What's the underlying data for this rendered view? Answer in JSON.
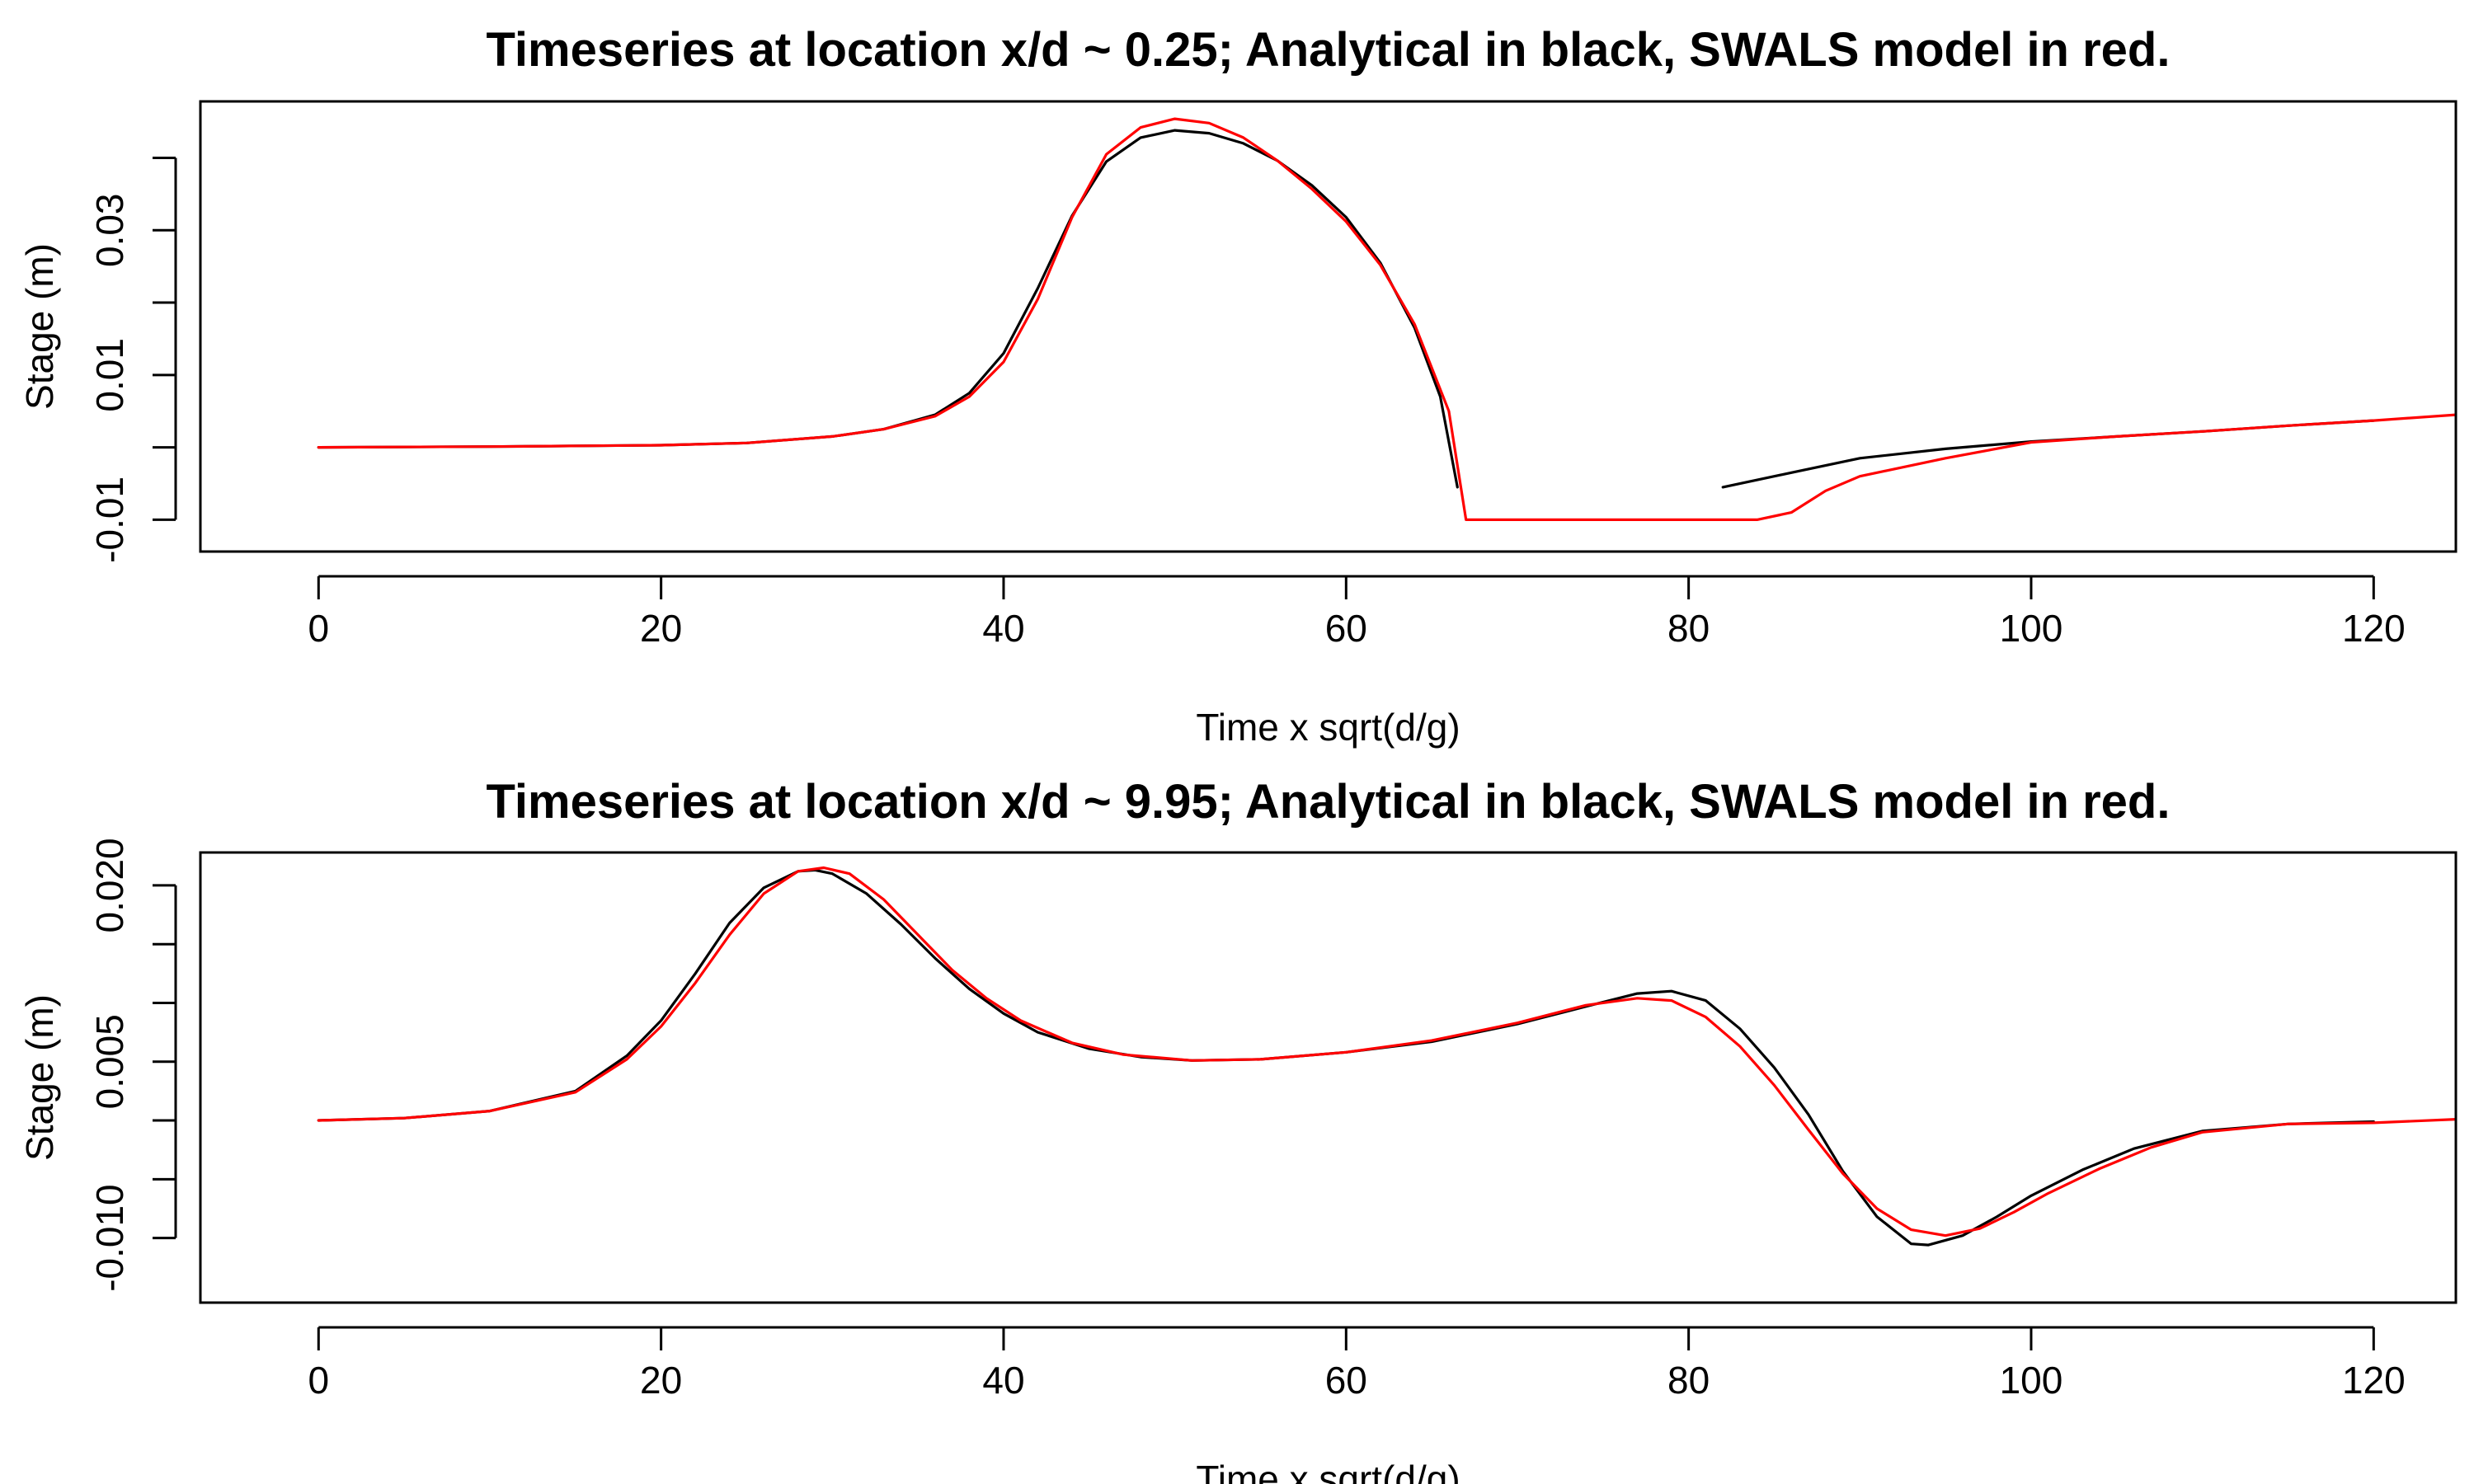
{
  "chart_data": [
    {
      "type": "line",
      "title": "Timeseries at location x/d ~ 0.25; Analytical in black, SWALS model in red.",
      "xlabel": "Time x sqrt(d/g)",
      "ylabel": "Stage (m)",
      "xlim": [
        -6.9,
        124.8
      ],
      "ylim": [
        -0.0144,
        0.0478
      ],
      "xticks": [
        0,
        20,
        40,
        60,
        80,
        100,
        120
      ],
      "xtick_labels": [
        "0",
        "20",
        "40",
        "60",
        "80",
        "100",
        "120"
      ],
      "yticks": [
        -0.01,
        0.0,
        0.01,
        0.02,
        0.03,
        0.04
      ],
      "ytick_labels": [
        "-0.01",
        "",
        "0.01",
        "",
        "0.03",
        ""
      ],
      "grid": false,
      "series": [
        {
          "color": "#000000",
          "segments": [
            [
              [
                0,
                0.0
              ],
              [
                10,
                0.0001
              ],
              [
                20,
                0.0003
              ],
              [
                25,
                0.0006
              ],
              [
                30,
                0.0015
              ],
              [
                33,
                0.0025
              ],
              [
                36,
                0.0045
              ],
              [
                38,
                0.0075
              ],
              [
                40,
                0.013
              ],
              [
                42,
                0.022
              ],
              [
                44,
                0.032
              ],
              [
                46,
                0.0395
              ],
              [
                48,
                0.0428
              ],
              [
                50,
                0.0438
              ],
              [
                52,
                0.0434
              ],
              [
                54,
                0.042
              ],
              [
                56,
                0.0396
              ],
              [
                58,
                0.0362
              ],
              [
                60,
                0.0318
              ],
              [
                62,
                0.0255
              ],
              [
                64,
                0.0165
              ],
              [
                65.5,
                0.007
              ],
              [
                66.5,
                -0.0055
              ]
            ],
            [
              [
                82,
                -0.0055
              ],
              [
                86,
                -0.0035
              ],
              [
                90,
                -0.0015
              ],
              [
                95,
                -0.0002
              ],
              [
                100,
                0.0008
              ],
              [
                105,
                0.0015
              ],
              [
                110,
                0.0022
              ],
              [
                115,
                0.003
              ],
              [
                120,
                0.0037
              ]
            ]
          ]
        },
        {
          "color": "#ff0000",
          "segments": [
            [
              [
                0,
                0.0
              ],
              [
                10,
                0.0001
              ],
              [
                20,
                0.0003
              ],
              [
                25,
                0.0006
              ],
              [
                30,
                0.0015
              ],
              [
                33,
                0.0025
              ],
              [
                36,
                0.0043
              ],
              [
                38,
                0.007
              ],
              [
                40,
                0.0118
              ],
              [
                42,
                0.0205
              ],
              [
                44,
                0.0318
              ],
              [
                46,
                0.0405
              ],
              [
                48,
                0.0442
              ],
              [
                50,
                0.0454
              ],
              [
                52,
                0.0448
              ],
              [
                54,
                0.0428
              ],
              [
                56,
                0.0396
              ],
              [
                58,
                0.0357
              ],
              [
                60,
                0.0312
              ],
              [
                62,
                0.0252
              ],
              [
                64,
                0.017
              ],
              [
                66,
                0.005
              ],
              [
                67,
                -0.01
              ],
              [
                70,
                -0.01
              ],
              [
                75,
                -0.01
              ],
              [
                80,
                -0.01
              ],
              [
                84,
                -0.01
              ],
              [
                86,
                -0.009
              ],
              [
                88,
                -0.006
              ],
              [
                90,
                -0.004
              ],
              [
                95,
                -0.0015
              ],
              [
                100,
                0.0007
              ],
              [
                105,
                0.0015
              ],
              [
                110,
                0.0022
              ],
              [
                115,
                0.003
              ],
              [
                120,
                0.0037
              ],
              [
                124.8,
                0.0045
              ]
            ]
          ]
        }
      ]
    },
    {
      "type": "line",
      "title": "Timeseries at location x/d ~ 9.95; Analytical in black, SWALS model in red.",
      "xlabel": "Time x sqrt(d/g)",
      "ylabel": "Stage (m)",
      "xlim": [
        -6.9,
        124.8
      ],
      "ylim": [
        -0.0155,
        0.0228
      ],
      "xticks": [
        0,
        20,
        40,
        60,
        80,
        100,
        120
      ],
      "xtick_labels": [
        "0",
        "20",
        "40",
        "60",
        "80",
        "100",
        "120"
      ],
      "yticks": [
        -0.01,
        -0.005,
        0.0,
        0.005,
        0.01,
        0.015,
        0.02
      ],
      "ytick_labels": [
        "-0.010",
        "",
        "",
        "0.005",
        "",
        "",
        "0.020"
      ],
      "grid": false,
      "series": [
        {
          "color": "#000000",
          "segments": [
            [
              [
                0,
                0.0
              ],
              [
                5,
                0.0002
              ],
              [
                10,
                0.0008
              ],
              [
                15,
                0.0025
              ],
              [
                18,
                0.0055
              ],
              [
                20,
                0.0085
              ],
              [
                22,
                0.0125
              ],
              [
                24,
                0.0168
              ],
              [
                26,
                0.0198
              ],
              [
                28,
                0.0212
              ],
              [
                29,
                0.0213
              ],
              [
                30,
                0.021
              ],
              [
                32,
                0.0193
              ],
              [
                34,
                0.0167
              ],
              [
                36,
                0.0138
              ],
              [
                38,
                0.0112
              ],
              [
                40,
                0.0091
              ],
              [
                42,
                0.0075
              ],
              [
                45,
                0.0061
              ],
              [
                48,
                0.0054
              ],
              [
                51,
                0.0051
              ],
              [
                55,
                0.0052
              ],
              [
                60,
                0.0058
              ],
              [
                65,
                0.0067
              ],
              [
                70,
                0.0082
              ],
              [
                74,
                0.0097
              ],
              [
                77,
                0.0108
              ],
              [
                79,
                0.011
              ],
              [
                81,
                0.0102
              ],
              [
                83,
                0.0078
              ],
              [
                85,
                0.0045
              ],
              [
                87,
                0.0005
              ],
              [
                89,
                -0.0043
              ],
              [
                91,
                -0.0082
              ],
              [
                93,
                -0.0105
              ],
              [
                94,
                -0.0106
              ],
              [
                96,
                -0.0098
              ],
              [
                98,
                -0.0082
              ],
              [
                100,
                -0.0064
              ],
              [
                103,
                -0.0042
              ],
              [
                106,
                -0.0024
              ],
              [
                110,
                -0.0009
              ],
              [
                115,
                -0.0003
              ],
              [
                120,
                -0.0001
              ]
            ]
          ]
        },
        {
          "color": "#ff0000",
          "segments": [
            [
              [
                0,
                0.0
              ],
              [
                5,
                0.0002
              ],
              [
                10,
                0.0008
              ],
              [
                15,
                0.0024
              ],
              [
                18,
                0.0052
              ],
              [
                20,
                0.008
              ],
              [
                22,
                0.0117
              ],
              [
                24,
                0.0158
              ],
              [
                26,
                0.0193
              ],
              [
                28,
                0.0212
              ],
              [
                29.5,
                0.0215
              ],
              [
                31,
                0.021
              ],
              [
                33,
                0.0188
              ],
              [
                35,
                0.0158
              ],
              [
                37,
                0.0128
              ],
              [
                39,
                0.0104
              ],
              [
                41,
                0.0085
              ],
              [
                44,
                0.0066
              ],
              [
                47,
                0.0056
              ],
              [
                51,
                0.0051
              ],
              [
                55,
                0.0052
              ],
              [
                60,
                0.0058
              ],
              [
                65,
                0.0068
              ],
              [
                70,
                0.0083
              ],
              [
                74,
                0.0098
              ],
              [
                77,
                0.0104
              ],
              [
                79,
                0.0102
              ],
              [
                81,
                0.0088
              ],
              [
                83,
                0.0063
              ],
              [
                85,
                0.003
              ],
              [
                87,
                -0.0008
              ],
              [
                89,
                -0.0045
              ],
              [
                91,
                -0.0075
              ],
              [
                93,
                -0.0093
              ],
              [
                95,
                -0.0098
              ],
              [
                97,
                -0.0092
              ],
              [
                99,
                -0.0078
              ],
              [
                101,
                -0.0062
              ],
              [
                104,
                -0.0041
              ],
              [
                107,
                -0.0023
              ],
              [
                110,
                -0.001
              ],
              [
                115,
                -0.0003
              ],
              [
                120,
                -0.0002
              ],
              [
                124.8,
                0.0001
              ]
            ]
          ]
        }
      ]
    }
  ]
}
